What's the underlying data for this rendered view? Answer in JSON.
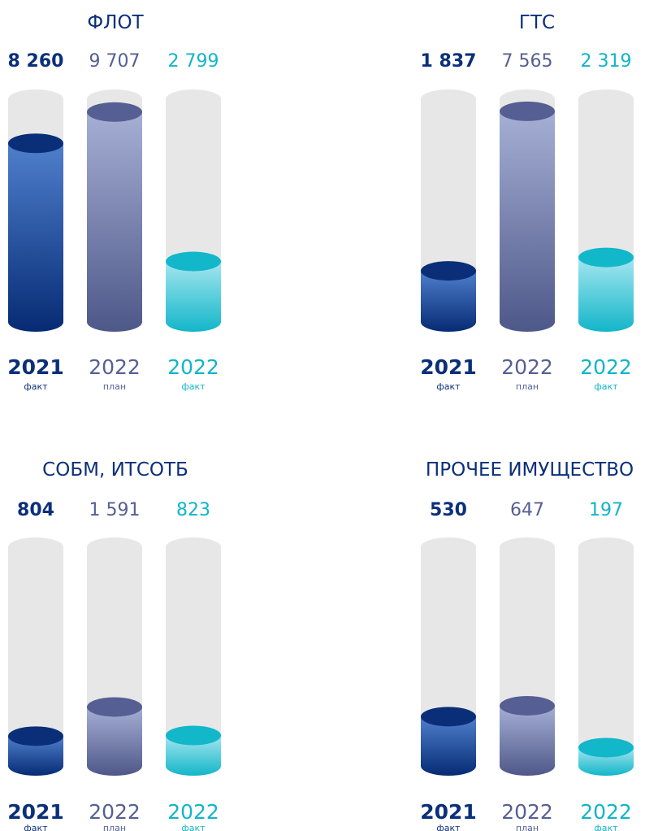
{
  "colors": {
    "fact_2021": "#0b2f7a",
    "plan_2022": "#555f92",
    "fact_2022": "#10b5c8",
    "track": "#e7e7e7"
  },
  "chart_data": [
    {
      "type": "bar",
      "title": "ФЛОТ",
      "categories": [
        "2021",
        "2022",
        "2022"
      ],
      "category_sublabels": [
        "факт",
        "план",
        "факт"
      ],
      "value_labels": [
        "8 260",
        "9 707",
        "2 799"
      ],
      "values": [
        8260,
        9707,
        2799
      ],
      "ylim": [
        0,
        10300
      ]
    },
    {
      "type": "bar",
      "title": "ГТС",
      "categories": [
        "2021",
        "2022",
        "2022"
      ],
      "category_sublabels": [
        "факт",
        "план",
        "факт"
      ],
      "value_labels": [
        "1 837",
        "7 565",
        "2 319"
      ],
      "values": [
        1837,
        7565,
        2319
      ],
      "ylim": [
        0,
        8000
      ]
    },
    {
      "type": "bar",
      "title": "СОБМ, ИТСОТБ",
      "categories": [
        "2021",
        "2022",
        "2022"
      ],
      "category_sublabels": [
        "факт",
        "план",
        "факт"
      ],
      "value_labels": [
        "804",
        "1 591",
        "823"
      ],
      "values": [
        804,
        1591,
        823
      ],
      "ylim": [
        0,
        5900
      ]
    },
    {
      "type": "bar",
      "title": "ПРОЧЕЕ ИМУЩЕСТВО",
      "categories": [
        "2021",
        "2022",
        "2022"
      ],
      "category_sublabels": [
        "факт",
        "план",
        "факт"
      ],
      "value_labels": [
        "530",
        "647",
        "197"
      ],
      "values": [
        530,
        647,
        197
      ],
      "ylim": [
        0,
        2350
      ]
    }
  ]
}
